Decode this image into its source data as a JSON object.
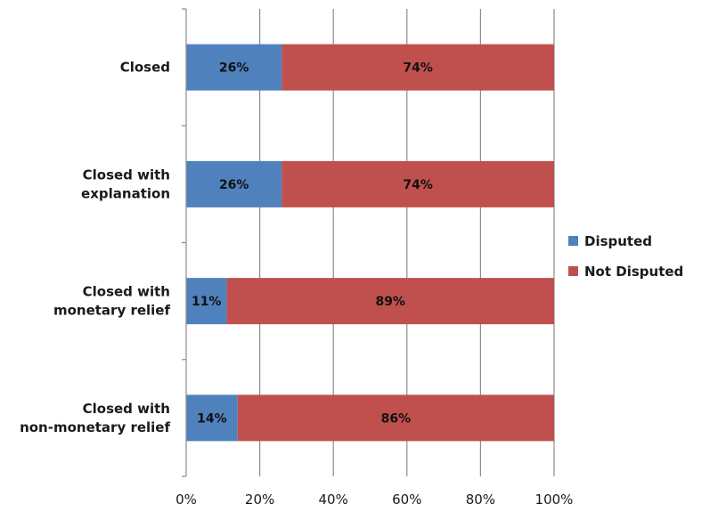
{
  "chart_data": {
    "type": "bar",
    "orientation": "horizontal",
    "stacked": true,
    "percent_axis": true,
    "categories": [
      [
        "Closed"
      ],
      [
        "Closed with",
        "explanation"
      ],
      [
        "Closed with",
        "monetary relief"
      ],
      [
        "Closed with",
        "non-monetary relief"
      ]
    ],
    "series": [
      {
        "name": "Disputed",
        "values": [
          26,
          26,
          11,
          14
        ],
        "labels": [
          "26%",
          "26%",
          "11%",
          "14%"
        ],
        "color": "#4f81bd"
      },
      {
        "name": "Not Disputed",
        "values": [
          74,
          74,
          89,
          86
        ],
        "labels": [
          "74%",
          "74%",
          "89%",
          "86%"
        ],
        "color": "#c0504d"
      }
    ],
    "x_ticks": [
      "0%",
      "20%",
      "40%",
      "60%",
      "80%",
      "100%"
    ],
    "xlim": [
      0,
      100
    ],
    "grid": true,
    "legend_position": "right"
  }
}
